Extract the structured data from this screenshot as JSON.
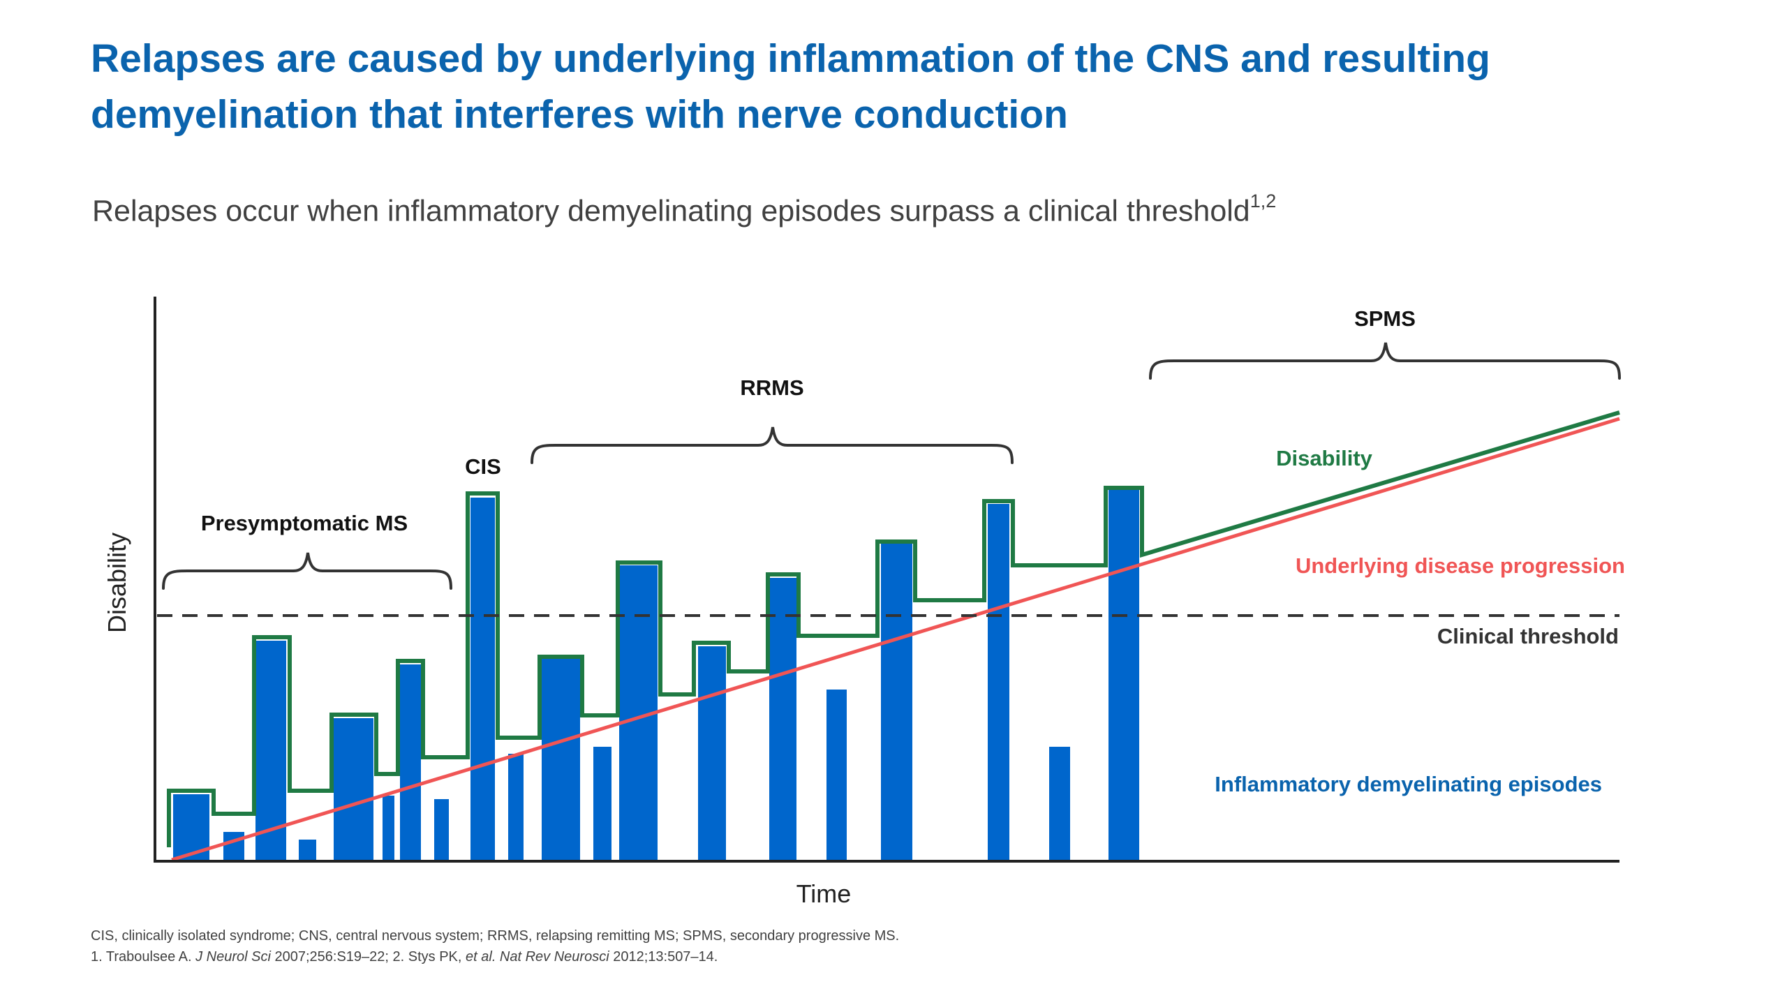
{
  "slide": {
    "title_line1": "Relapses are caused by underlying inflammation of the CNS and resulting",
    "title_line2": "demyelination that interferes with nerve conduction",
    "subtitle": "Relapses occur when inflammatory demyelinating episodes surpass a clinical threshold",
    "subtitle_refs": "1,2"
  },
  "diagram": {
    "y_axis_label": "Disability",
    "x_axis_label": "Time",
    "phases": {
      "presymptomatic": "Presymptomatic MS",
      "cis": "CIS",
      "rrms": "RRMS",
      "spms": "SPMS"
    },
    "legend": {
      "disability": "Disability",
      "underlying": "Underlying disease progression",
      "threshold": "Clinical threshold",
      "episodes": "Inflammatory demyelinating episodes"
    },
    "colors": {
      "title": "#0a63ad",
      "bars": "#0066cc",
      "disability_line": "#1f7a44",
      "progression_line": "#f05555",
      "threshold_line": "#333333",
      "episodes_label": "#0a63ad"
    }
  },
  "footnotes": {
    "line1": "CIS, clinically isolated syndrome; CNS, central nervous system; RRMS, relapsing remitting MS; SPMS, secondary progressive MS.",
    "line2_a": "1. Traboulsee A. ",
    "line2_b": "J Neurol Sci",
    "line2_c": " 2007;256:S19–22; 2. Stys PK, ",
    "line2_d": "et al. Nat Rev Neurosci",
    "line2_e": " 2012;13:507–14."
  }
}
